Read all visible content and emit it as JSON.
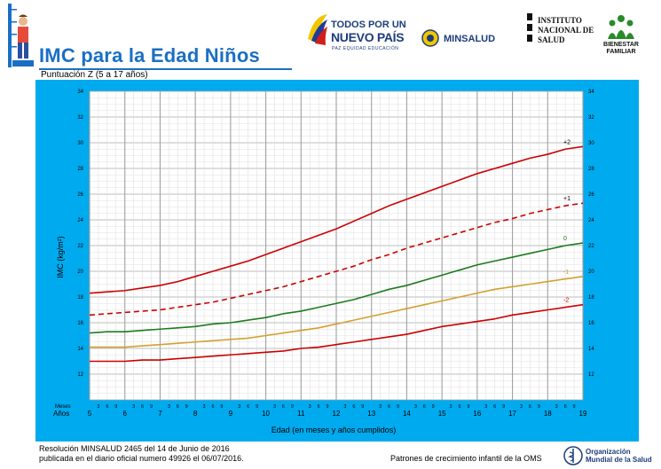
{
  "header": {
    "title": "IMC para la Edad Niños",
    "subtitle": "Puntuación Z (5 a 17 años)",
    "logos": {
      "todos_line1": "TODOS POR UN",
      "todos_line2": "NUEVO PAÍS",
      "todos_line3": "PAZ  EQUIDAD  EDUCACIÓN",
      "minsalud": "MINSALUD",
      "ins_line1": "INSTITUTO",
      "ins_line2": "NACIONAL DE",
      "ins_line3": "SALUD",
      "icbf_line1": "BIENESTAR",
      "icbf_line2": "FAMILIAR"
    },
    "icons": [
      "child-scale-icon",
      "colombia-flag-icon",
      "minsalud-seal-icon",
      "ins-emblem-icon",
      "icbf-family-icon"
    ]
  },
  "footer": {
    "resolution_line1": "Resolución MINSALUD 2465 del 14 de Junio de 2016",
    "resolution_line2": "publicada en el diario oficial numero 49926 el 06/07/2016.",
    "patterns": "Patrones de crecimiento infantil de la OMS",
    "oms_line1": "Organización",
    "oms_line2": "Mundial de la Salud",
    "oms_icon": "who-emblem-icon"
  },
  "colors": {
    "frame": "#00aaee",
    "plot_bg": "#ffffff",
    "red": "#cc0000",
    "green": "#1e7a1e",
    "orange": "#d4a030",
    "title": "#1a6fc4"
  },
  "chart_data": {
    "type": "line",
    "title": "",
    "xlabel": "Edad (en meses y años cumplidos)",
    "ylabel": "IMC (kg/m²)",
    "xlim": [
      5,
      19
    ],
    "ylim": [
      10,
      34
    ],
    "y_ticks": [
      12,
      14,
      16,
      18,
      20,
      22,
      24,
      26,
      28,
      30,
      32,
      34
    ],
    "x_year_ticks": [
      5,
      6,
      7,
      8,
      9,
      10,
      11,
      12,
      13,
      14,
      15,
      16,
      17,
      18,
      19
    ],
    "x_month_ticks": [
      "3",
      "6",
      "9"
    ],
    "x_row_labels": {
      "months": "Meses",
      "years": "Años"
    },
    "grid": true,
    "x": [
      5,
      5.5,
      6,
      6.5,
      7,
      7.5,
      8,
      8.5,
      9,
      9.5,
      10,
      10.5,
      11,
      11.5,
      12,
      12.5,
      13,
      13.5,
      14,
      14.5,
      15,
      15.5,
      16,
      16.5,
      17,
      17.5,
      18,
      18.5,
      19
    ],
    "series": [
      {
        "name": "+2",
        "color": "#cc0000",
        "dash": false,
        "values": [
          18.3,
          18.4,
          18.5,
          18.7,
          18.9,
          19.2,
          19.6,
          20.0,
          20.4,
          20.8,
          21.3,
          21.8,
          22.3,
          22.8,
          23.3,
          23.9,
          24.5,
          25.1,
          25.6,
          26.1,
          26.6,
          27.1,
          27.6,
          28.0,
          28.4,
          28.8,
          29.1,
          29.5,
          29.7
        ]
      },
      {
        "name": "+1",
        "color": "#cc0000",
        "dash": true,
        "values": [
          16.6,
          16.7,
          16.8,
          16.9,
          17.0,
          17.2,
          17.4,
          17.6,
          17.9,
          18.2,
          18.5,
          18.8,
          19.2,
          19.6,
          20.0,
          20.4,
          20.9,
          21.3,
          21.8,
          22.2,
          22.6,
          23.0,
          23.4,
          23.8,
          24.1,
          24.5,
          24.8,
          25.1,
          25.3
        ]
      },
      {
        "name": "0",
        "color": "#1e7a1e",
        "dash": false,
        "values": [
          15.2,
          15.3,
          15.3,
          15.4,
          15.5,
          15.6,
          15.7,
          15.9,
          16.0,
          16.2,
          16.4,
          16.7,
          16.9,
          17.2,
          17.5,
          17.8,
          18.2,
          18.6,
          18.9,
          19.3,
          19.7,
          20.1,
          20.5,
          20.8,
          21.1,
          21.4,
          21.7,
          22.0,
          22.2
        ]
      },
      {
        "name": "-1",
        "color": "#d4a030",
        "dash": false,
        "values": [
          14.1,
          14.1,
          14.1,
          14.2,
          14.3,
          14.4,
          14.5,
          14.6,
          14.7,
          14.8,
          15.0,
          15.2,
          15.4,
          15.6,
          15.9,
          16.2,
          16.5,
          16.8,
          17.1,
          17.4,
          17.7,
          18.0,
          18.3,
          18.6,
          18.8,
          19.0,
          19.2,
          19.4,
          19.6
        ]
      },
      {
        "name": "-2",
        "color": "#cc0000",
        "dash": false,
        "values": [
          13.0,
          13.0,
          13.0,
          13.1,
          13.1,
          13.2,
          13.3,
          13.4,
          13.5,
          13.6,
          13.7,
          13.8,
          14.0,
          14.1,
          14.3,
          14.5,
          14.7,
          14.9,
          15.1,
          15.4,
          15.7,
          15.9,
          16.1,
          16.3,
          16.6,
          16.8,
          17.0,
          17.2,
          17.4
        ]
      }
    ]
  }
}
